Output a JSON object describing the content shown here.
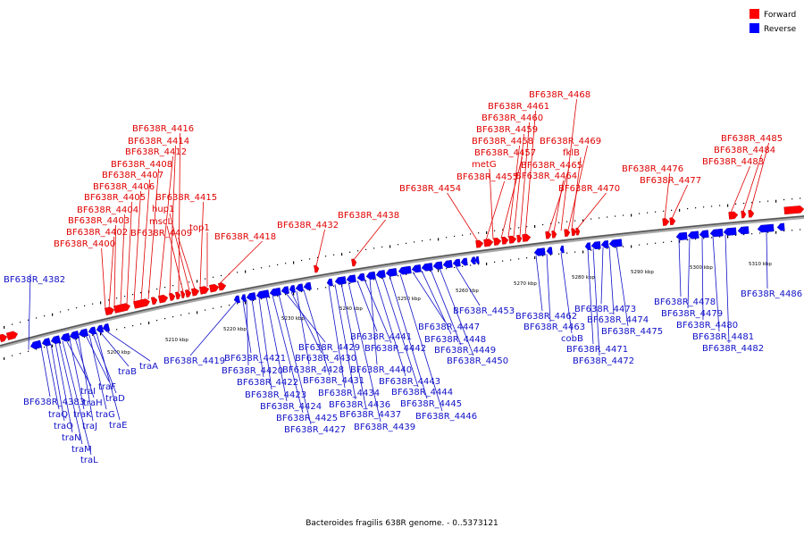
{
  "footer": "Bacteroides fragilis 638R genome. - 0..5373121",
  "legend": {
    "forward_label": "Forward",
    "reverse_label": "Reverse",
    "forward_color": "#ff0000",
    "reverse_color": "#0000ff"
  },
  "ticks": [
    "5200 kbp",
    "5210 kbp",
    "5220 kbp",
    "5230 kbp",
    "5240 kbp",
    "5250 kbp",
    "5260 kbp",
    "5270 kbp",
    "5280 kbp",
    "5290 kbp",
    "5300 kbp",
    "5310 kbp"
  ],
  "forward_labels": [
    "BF638R_4400",
    "BF638R_4402",
    "BF638R_4403",
    "BF638R_4404",
    "BF638R_4405",
    "BF638R_4406",
    "BF638R_4407",
    "BF638R_4408",
    "BF638R_4412",
    "BF638R_4414",
    "BF638R_4416",
    "mscL",
    "hup1",
    "BF638R_4409",
    "BF638R_4415",
    "top1",
    "BF638R_4418",
    "BF638R_4432",
    "BF638R_4438",
    "BF638R_4454",
    "BF638R_4455",
    "metG",
    "BF638R_4457",
    "BF638R_4458",
    "BF638R_4459",
    "BF638R_4460",
    "BF638R_4461",
    "BF638R_4468",
    "BF638R_4469",
    "fklB",
    "BF638R_4465",
    "BF638R_4464",
    "BF638R_4470",
    "BF638R_4476",
    "BF638R_4477",
    "BF638R_4483",
    "BF638R_4484",
    "BF638R_4485"
  ],
  "reverse_labels": [
    "BF638R_4382",
    "BF638R_4383",
    "traQ",
    "traO",
    "traN",
    "traM",
    "traL",
    "traI",
    "traK",
    "traH",
    "traJ",
    "traF",
    "traG",
    "traD",
    "traE",
    "traB",
    "traA",
    "BF638R_4419",
    "BF638R_4421",
    "BF638R_4420",
    "BF638R_4422",
    "BF638R_4423",
    "BF638R_4424",
    "BF638R_4425",
    "BF638R_4427",
    "BF638R_4429",
    "BF638R_4430",
    "BF638R_4428",
    "BF638R_4431",
    "BF638R_4434",
    "BF638R_4436",
    "BF638R_4437",
    "BF638R_4439",
    "BF638R_4441",
    "BF638R_4442",
    "BF638R_4440",
    "BF638R_4443",
    "BF638R_4444",
    "BF638R_4445",
    "BF638R_4446",
    "BF638R_4447",
    "BF638R_4448",
    "BF638R_4449",
    "BF638R_4450",
    "BF638R_4453",
    "BF638R_4462",
    "BF638R_4463",
    "cobB",
    "BF638R_4471",
    "BF638R_4472",
    "BF638R_4473",
    "BF638R_4474",
    "BF638R_4475",
    "BF638R_4478",
    "BF638R_4479",
    "BF638R_4480",
    "BF638R_4481",
    "BF638R_4482",
    "BF638R_4486"
  ]
}
